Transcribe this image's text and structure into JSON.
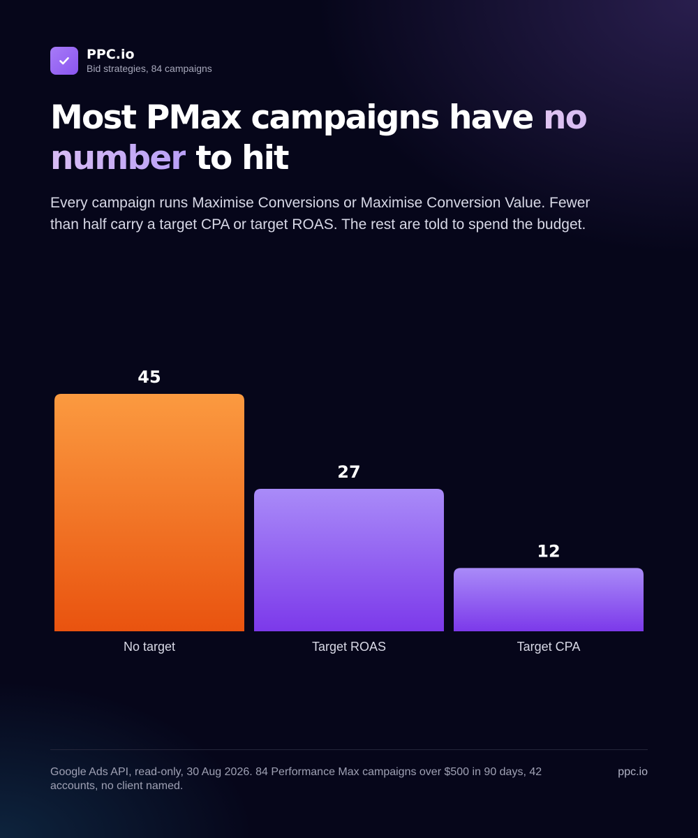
{
  "brand": {
    "name": "PPC.io",
    "subtitle": "Bid strategies, 84 campaigns",
    "icon": "check-icon"
  },
  "headline": {
    "before": "Most PMax campaigns have ",
    "highlight": "no number",
    "after": " to hit"
  },
  "lead": "Every campaign runs Maximise Conversions or Maximise Conversion Value. Fewer than half carry a target CPA or target ROAS. The rest are told to spend the budget.",
  "chart_data": {
    "type": "bar",
    "title": "",
    "xlabel": "",
    "ylabel": "",
    "categories": [
      "No target",
      "Target ROAS",
      "Target CPA"
    ],
    "values": [
      45,
      27,
      12
    ],
    "ylim": [
      0,
      45
    ],
    "grid": false,
    "colors": [
      [
        "#fb9a40",
        "#e9530f"
      ],
      [
        "#a98bf8",
        "#7c39ea"
      ],
      [
        "#a98bf8",
        "#7c39ea"
      ]
    ]
  },
  "footer": {
    "note": "Google Ads API, read-only, 30 Aug 2026. 84 Performance Max campaigns over $500 in 90 days, 42 accounts, no client named.",
    "site": "ppc.io"
  }
}
